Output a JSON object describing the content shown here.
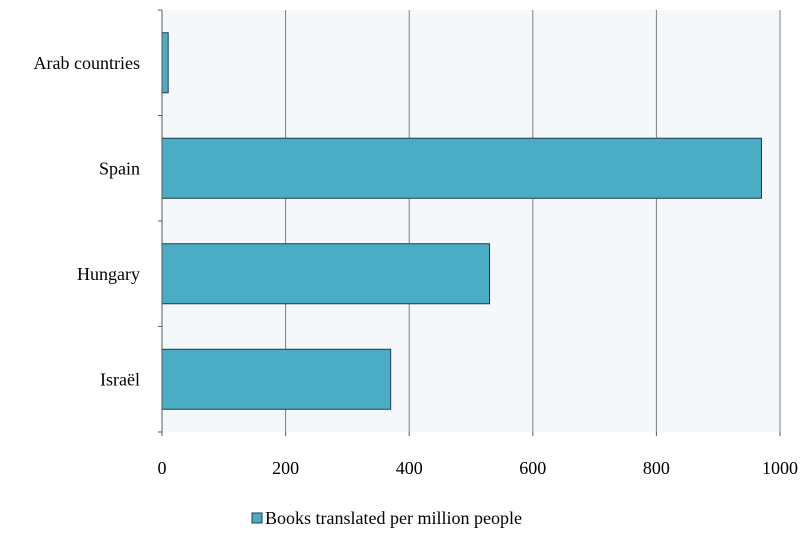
{
  "chart_data": {
    "type": "bar",
    "orientation": "horizontal",
    "categories": [
      "Arab countries",
      "Spain",
      "Hungary",
      "Israël"
    ],
    "series": [
      {
        "name": "Books translated per million people",
        "values": [
          10,
          970,
          530,
          370
        ]
      }
    ],
    "xlim": [
      0,
      1000
    ],
    "xticks": [
      0,
      200,
      400,
      600,
      800,
      1000
    ],
    "grid": true,
    "legend_position": "bottom",
    "colors": {
      "bar": "#4BACC6",
      "plot_background": "#F4F8FB",
      "gridline": "#7F7F7F"
    }
  }
}
